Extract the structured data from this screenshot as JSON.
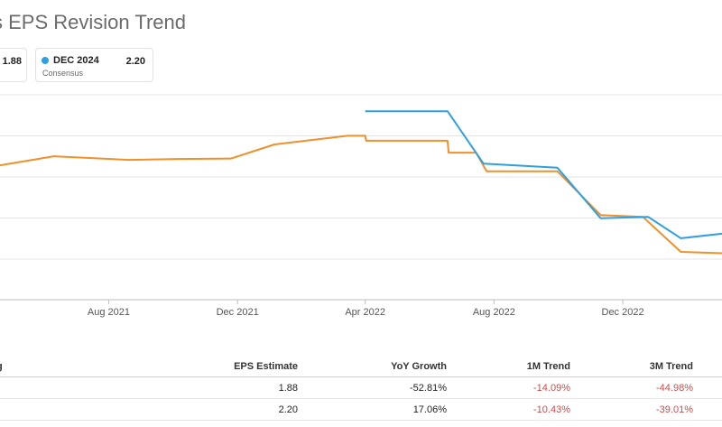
{
  "title": "s EPS Revision Trend",
  "legend": [
    {
      "name": "",
      "sub": "",
      "value": "1.88",
      "color": "#f0902c"
    },
    {
      "name": "DEC 2024",
      "sub": "Consensus",
      "value": "2.20",
      "color": "#2f9fe0"
    }
  ],
  "chart_data": {
    "type": "line",
    "title": "s EPS Revision Trend",
    "xlabel": "",
    "ylabel": "",
    "x_tick_labels": [
      "Aug 2021",
      "Dec 2021",
      "Apr 2022",
      "Aug 2022",
      "Dec 2022"
    ],
    "x_range": [
      "2021-04-20",
      "2023-03-05"
    ],
    "grid": true,
    "series": [
      {
        "color": "#f0902c",
        "points": [
          [
            "2021-04-20",
            3.95
          ],
          [
            "2021-06-10",
            4.15
          ],
          [
            "2021-08-20",
            4.07
          ],
          [
            "2021-10-05",
            4.09
          ],
          [
            "2021-11-25",
            4.1
          ],
          [
            "2022-01-05",
            4.41
          ],
          [
            "2022-03-15",
            4.6
          ],
          [
            "2022-04-01",
            4.6
          ],
          [
            "2022-04-02",
            4.49
          ],
          [
            "2022-06-18",
            4.49
          ],
          [
            "2022-06-19",
            4.23
          ],
          [
            "2022-07-15",
            4.23
          ],
          [
            "2022-07-25",
            3.82
          ],
          [
            "2022-09-30",
            3.82
          ],
          [
            "2022-11-10",
            2.86
          ],
          [
            "2022-12-20",
            2.82
          ],
          [
            "2023-01-25",
            2.05
          ],
          [
            "2023-03-05",
            2.02
          ]
        ]
      },
      {
        "color": "#2f9fe0",
        "points": [
          [
            "2022-04-01",
            5.14
          ],
          [
            "2022-06-18",
            5.14
          ],
          [
            "2022-07-22",
            3.99
          ],
          [
            "2022-09-30",
            3.9
          ],
          [
            "2022-11-10",
            2.79
          ],
          [
            "2022-12-25",
            2.82
          ],
          [
            "2023-01-25",
            2.35
          ],
          [
            "2023-03-05",
            2.45
          ]
        ]
      }
    ]
  },
  "table": {
    "headers": [
      "g",
      "EPS Estimate",
      "YoY Growth",
      "1M Trend",
      "3M Trend"
    ],
    "rows": [
      {
        "eps": "1.88",
        "yoy": "-52.81%",
        "m1": "-14.09%",
        "m3": "-44.98%"
      },
      {
        "eps": "2.20",
        "yoy": "17.06%",
        "m1": "-10.43%",
        "m3": "-39.01%"
      }
    ]
  }
}
